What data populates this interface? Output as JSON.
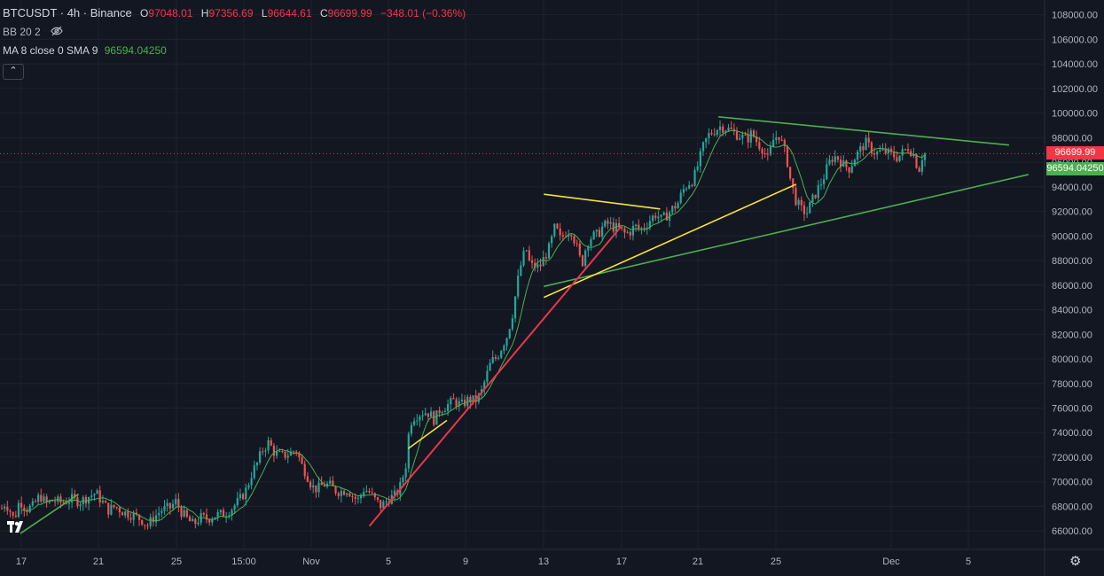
{
  "legend": {
    "symbol": "BTCUSDT · 4h · Binance",
    "open_label": "O",
    "open": "97048.01",
    "high_label": "H",
    "high": "97356.69",
    "low_label": "L",
    "low": "96644.61",
    "close_label": "C",
    "close": "96699.99",
    "change": "−348.01 (−0.36%)",
    "bb": "BB 20 2",
    "ma": "MA 8 close 0 SMA 9",
    "ma_value": "96594.04250",
    "collapse_icon": "chevron-up-icon",
    "eye_icon": "eye-off-icon"
  },
  "badges": {
    "last_price": "96699.99",
    "ma_price": "96594.04250"
  },
  "colors": {
    "background": "#131722",
    "up": "#26a69a",
    "down": "#ef5350",
    "ma": "#4caf50",
    "last_price_bg": "#f23645",
    "ma_badge_bg": "#4caf50",
    "trend_green": "#4caf50",
    "trend_yellow": "#f7e13a",
    "trend_red": "#e8374a"
  },
  "chart_data": {
    "type": "candlestick",
    "symbol": "BTCUSDT",
    "interval": "4h",
    "exchange": "Binance",
    "ylim": [
      64500,
      109200
    ],
    "y_ticks": [
      66000,
      68000,
      70000,
      72000,
      74000,
      76000,
      78000,
      80000,
      82000,
      84000,
      86000,
      88000,
      90000,
      92000,
      94000,
      96000,
      98000,
      100000,
      102000,
      104000,
      106000,
      108000
    ],
    "x_ticks": [
      "17",
      "21",
      "25",
      "15:00",
      "Nov",
      "5",
      "9",
      "13",
      "17",
      "21",
      "25",
      "Dec",
      "5"
    ],
    "grid": true,
    "last_price": 96699.99,
    "ma": {
      "name": "MA 8 close 0 SMA 9",
      "value": 96594.0425
    },
    "trendlines": [
      {
        "color": "green",
        "from": [
          "Nov 22",
          99700
        ],
        "to": [
          "Dec 7",
          97400
        ]
      },
      {
        "color": "green",
        "from": [
          "Nov 13",
          85900
        ],
        "to": [
          "Dec 8",
          95000
        ]
      },
      {
        "color": "yellow",
        "from": [
          "Nov 13",
          85000
        ],
        "to": [
          "Nov 26",
          94200
        ]
      },
      {
        "color": "yellow",
        "from": [
          "Nov 13",
          93400
        ],
        "to": [
          "Nov 19",
          92200
        ]
      },
      {
        "color": "yellow",
        "from": [
          "Nov 6",
          72700
        ],
        "to": [
          "Nov 8",
          75000
        ]
      },
      {
        "color": "red",
        "from": [
          "Nov 4",
          66400
        ],
        "to": [
          "Nov 17",
          90800
        ]
      },
      {
        "color": "green",
        "from": [
          "Oct 17",
          65800
        ],
        "to": [
          "Oct 20",
          69000
        ]
      }
    ],
    "path": [
      [
        0,
        67600
      ],
      [
        6,
        68300
      ],
      [
        11,
        67700
      ],
      [
        16,
        66900
      ],
      [
        22,
        68500
      ],
      [
        30,
        67800
      ],
      [
        37,
        68000
      ],
      [
        45,
        68900
      ],
      [
        52,
        68200
      ],
      [
        60,
        68500
      ],
      [
        70,
        68300
      ],
      [
        80,
        68600
      ],
      [
        90,
        68400
      ],
      [
        100,
        68800
      ],
      [
        108,
        69100
      ],
      [
        115,
        68400
      ],
      [
        122,
        67700
      ],
      [
        130,
        68000
      ],
      [
        140,
        67500
      ],
      [
        150,
        67300
      ],
      [
        160,
        66900
      ],
      [
        166,
        66400
      ],
      [
        172,
        67000
      ],
      [
        182,
        67700
      ],
      [
        192,
        67900
      ],
      [
        198,
        68400
      ],
      [
        205,
        67500
      ],
      [
        212,
        66900
      ],
      [
        218,
        66500
      ],
      [
        226,
        67100
      ],
      [
        234,
        67000
      ],
      [
        244,
        67300
      ],
      [
        254,
        67400
      ],
      [
        262,
        67900
      ],
      [
        270,
        68500
      ],
      [
        278,
        69400
      ],
      [
        284,
        70700
      ],
      [
        290,
        71500
      ],
      [
        296,
        72600
      ],
      [
        303,
        73200
      ],
      [
        310,
        72300
      ],
      [
        318,
        72100
      ],
      [
        326,
        72300
      ],
      [
        334,
        72600
      ],
      [
        340,
        71400
      ],
      [
        346,
        70600
      ],
      [
        352,
        69600
      ],
      [
        358,
        69400
      ],
      [
        365,
        69800
      ],
      [
        372,
        69700
      ],
      [
        378,
        69300
      ],
      [
        384,
        69200
      ],
      [
        392,
        69400
      ],
      [
        398,
        68800
      ],
      [
        404,
        68500
      ],
      [
        410,
        69400
      ],
      [
        416,
        69200
      ],
      [
        422,
        68600
      ],
      [
        430,
        68000
      ],
      [
        438,
        68600
      ],
      [
        446,
        68900
      ],
      [
        452,
        69700
      ],
      [
        458,
        71500
      ],
      [
        462,
        74800
      ],
      [
        467,
        75300
      ],
      [
        472,
        75500
      ],
      [
        478,
        75700
      ],
      [
        484,
        75600
      ],
      [
        490,
        75000
      ],
      [
        496,
        75900
      ],
      [
        504,
        76200
      ],
      [
        512,
        76600
      ],
      [
        520,
        76200
      ],
      [
        528,
        76700
      ],
      [
        536,
        76600
      ],
      [
        542,
        77100
      ],
      [
        548,
        78500
      ],
      [
        554,
        79800
      ],
      [
        560,
        80100
      ],
      [
        566,
        81000
      ],
      [
        572,
        81900
      ],
      [
        578,
        83700
      ],
      [
        584,
        86400
      ],
      [
        589,
        88200
      ],
      [
        594,
        88900
      ],
      [
        598,
        87500
      ],
      [
        602,
        87600
      ],
      [
        608,
        87400
      ],
      [
        614,
        88300
      ],
      [
        620,
        89100
      ],
      [
        626,
        90800
      ],
      [
        632,
        89700
      ],
      [
        638,
        90300
      ],
      [
        644,
        90500
      ],
      [
        650,
        89200
      ],
      [
        656,
        87600
      ],
      [
        662,
        89500
      ],
      [
        668,
        90000
      ],
      [
        674,
        90100
      ],
      [
        680,
        90800
      ],
      [
        686,
        91000
      ],
      [
        692,
        90700
      ],
      [
        698,
        90600
      ],
      [
        704,
        90200
      ],
      [
        710,
        90300
      ],
      [
        716,
        90800
      ],
      [
        722,
        90500
      ],
      [
        728,
        90900
      ],
      [
        734,
        91400
      ],
      [
        740,
        91800
      ],
      [
        746,
        91300
      ],
      [
        752,
        91700
      ],
      [
        758,
        92200
      ],
      [
        764,
        92600
      ],
      [
        770,
        93700
      ],
      [
        776,
        94300
      ],
      [
        782,
        94600
      ],
      [
        788,
        96000
      ],
      [
        794,
        97500
      ],
      [
        800,
        98300
      ],
      [
        806,
        98600
      ],
      [
        812,
        98900
      ],
      [
        818,
        98800
      ],
      [
        824,
        98600
      ],
      [
        830,
        98300
      ],
      [
        836,
        98100
      ],
      [
        842,
        97800
      ],
      [
        848,
        98400
      ],
      [
        854,
        97600
      ],
      [
        860,
        97100
      ],
      [
        866,
        96200
      ],
      [
        872,
        97800
      ],
      [
        878,
        98300
      ],
      [
        884,
        97100
      ],
      [
        888,
        96000
      ],
      [
        892,
        94300
      ],
      [
        898,
        92800
      ],
      [
        904,
        92100
      ],
      [
        910,
        91900
      ],
      [
        916,
        92900
      ],
      [
        922,
        93800
      ],
      [
        928,
        94600
      ],
      [
        934,
        95800
      ],
      [
        940,
        96500
      ],
      [
        946,
        96300
      ],
      [
        952,
        95700
      ],
      [
        958,
        95500
      ],
      [
        964,
        96400
      ],
      [
        970,
        97000
      ],
      [
        976,
        97600
      ],
      [
        982,
        97100
      ],
      [
        988,
        96700
      ],
      [
        994,
        96900
      ],
      [
        1000,
        96800
      ],
      [
        1006,
        96600
      ],
      [
        1012,
        96400
      ],
      [
        1018,
        96800
      ],
      [
        1024,
        97200
      ],
      [
        1030,
        96700
      ],
      [
        1036,
        95300
      ],
      [
        1040,
        96500
      ],
      [
        1043,
        96700
      ]
    ],
    "candle_count": 330
  },
  "icons": {
    "logo": "tradingview-logo-icon",
    "settings": "gear-icon"
  }
}
